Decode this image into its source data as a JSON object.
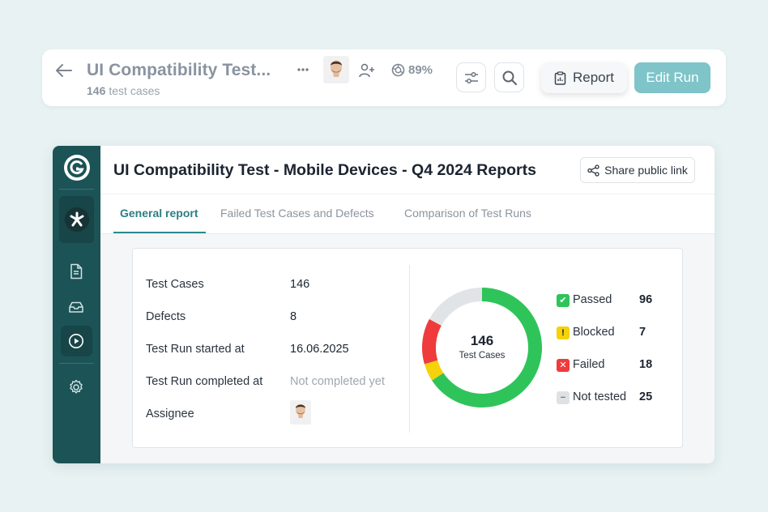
{
  "header": {
    "title": "UI Compatibility Test...",
    "case_count": "146",
    "case_count_suffix": "test cases",
    "progress": "89%",
    "report_label": "Report",
    "edit_label": "Edit Run"
  },
  "report": {
    "title": "UI Compatibility Test - Mobile Devices - Q4 2024 Reports",
    "share_label": "Share public link",
    "tabs": [
      {
        "label": "General report",
        "active": true
      },
      {
        "label": "Failed Test Cases and Defects",
        "active": false
      },
      {
        "label": "Comparison of Test Runs",
        "active": false
      }
    ],
    "info": [
      {
        "label": "Test Cases",
        "value": "146"
      },
      {
        "label": "Defects",
        "value": "8"
      },
      {
        "label": "Test Run started at",
        "value": "16.06.2025"
      },
      {
        "label": "Test Run completed at",
        "value": "Not completed yet"
      },
      {
        "label": "Assignee",
        "value": ""
      }
    ]
  },
  "chart_data": {
    "type": "pie",
    "center_value": "146",
    "center_label": "Test Cases",
    "categories": [
      "Passed",
      "Blocked",
      "Failed",
      "Not tested"
    ],
    "values": [
      96,
      7,
      18,
      25
    ],
    "colors": [
      "#2fc45a",
      "#f5d20a",
      "#ef3b3b",
      "#e1e4e7"
    ]
  },
  "colors": {
    "accent": "#2b8a8f",
    "sidebar": "#1c5356",
    "edit_button": "#7ec4c9"
  }
}
